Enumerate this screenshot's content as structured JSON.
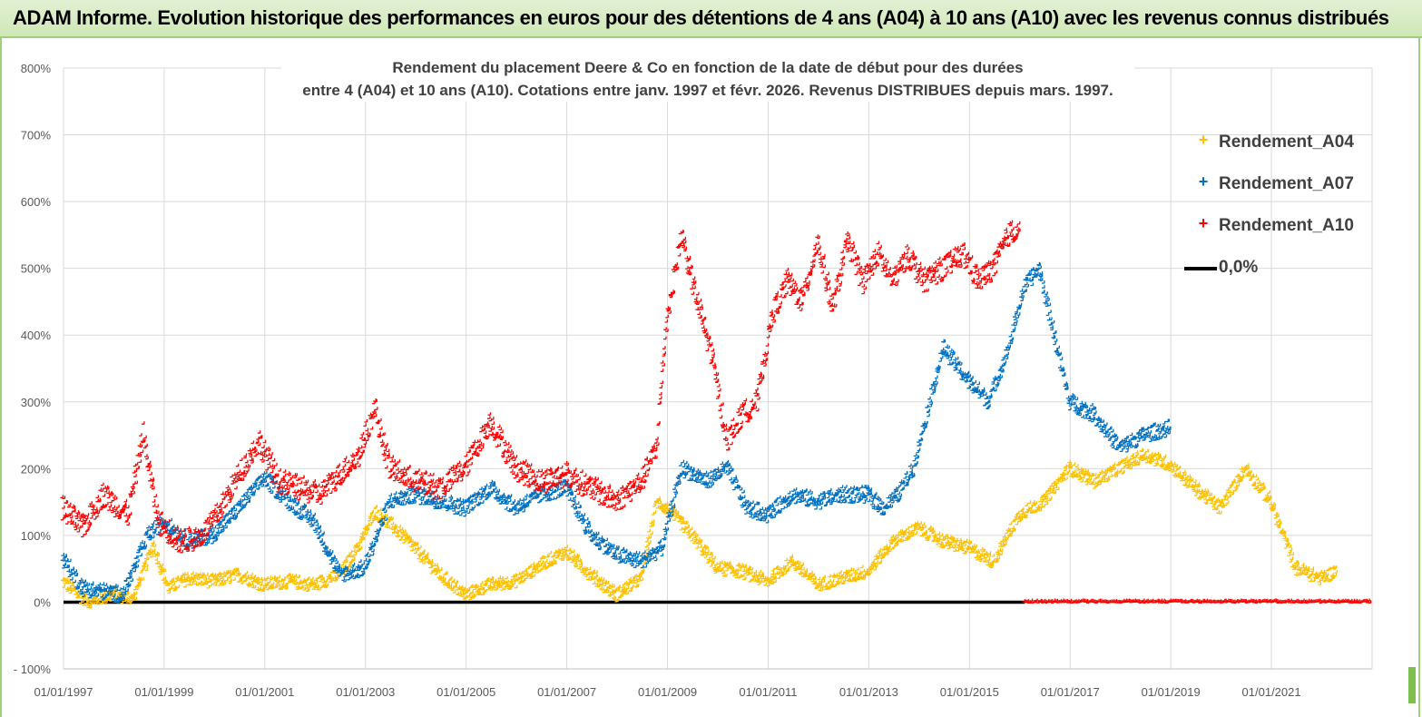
{
  "header": {
    "title": "ADAM Informe. Evolution historique des performances en euros pour des détentions de 4 ans (A04) à 10 ans (A10) avec les revenus connus distribués"
  },
  "chart_data": {
    "type": "scatter",
    "title_line1": "Rendement du placement Deere & Co en fonction de la date de début pour des durées",
    "title_line2": "entre 4 (A04) et 10 ans (A10).  Cotations entre janv. 1997 et févr. 2026. Revenus  DISTRIBUES depuis mars. 1997.",
    "xlabel": "",
    "ylabel": "",
    "x_range": [
      1997.0,
      2023.0
    ],
    "ylim": [
      -100,
      800
    ],
    "y_ticks": [
      -100,
      0,
      100,
      200,
      300,
      400,
      500,
      600,
      700,
      800
    ],
    "y_tick_labels": [
      "- 100%",
      "0%",
      "100%",
      "200%",
      "300%",
      "400%",
      "500%",
      "600%",
      "700%",
      "800%"
    ],
    "x_tick_labels": [
      "01/01/1997",
      "01/01/1999",
      "01/01/2001",
      "01/01/2003",
      "01/01/2005",
      "01/01/2007",
      "01/01/2009",
      "01/01/2011",
      "01/01/2013",
      "01/01/2015",
      "01/01/2017",
      "01/01/2019",
      "01/01/2021"
    ],
    "x_tick_years": [
      1997,
      1999,
      2001,
      2003,
      2005,
      2007,
      2009,
      2011,
      2013,
      2015,
      2017,
      2019,
      2021
    ],
    "legend_position": "right",
    "series": [
      {
        "name": "Rendement_A04",
        "marker": "+",
        "color": "#ffc000",
        "noise": 10,
        "end_year": 2022.3,
        "x": [
          1997.0,
          1997.5,
          1998.0,
          1998.4,
          1998.8,
          1999.1,
          1999.5,
          2000.0,
          2000.5,
          2001.0,
          2001.5,
          2002.0,
          2002.5,
          2002.9,
          2003.2,
          2003.6,
          2004.0,
          2004.5,
          2005.0,
          2005.5,
          2006.0,
          2006.5,
          2007.0,
          2007.5,
          2008.0,
          2008.5,
          2008.8,
          2009.0,
          2009.5,
          2010.0,
          2010.5,
          2011.0,
          2011.5,
          2012.0,
          2012.5,
          2013.0,
          2013.5,
          2014.0,
          2014.5,
          2015.0,
          2015.5,
          2016.0,
          2016.5,
          2017.0,
          2017.5,
          2018.0,
          2018.5,
          2019.0,
          2019.5,
          2020.0,
          2020.5,
          2021.0,
          2021.5,
          2022.0,
          2022.3
        ],
        "values": [
          30,
          0,
          10,
          5,
          85,
          20,
          35,
          30,
          40,
          25,
          30,
          25,
          40,
          85,
          135,
          110,
          80,
          40,
          10,
          25,
          30,
          55,
          75,
          40,
          10,
          35,
          150,
          140,
          100,
          50,
          45,
          30,
          60,
          25,
          35,
          45,
          90,
          110,
          90,
          80,
          60,
          130,
          150,
          200,
          180,
          200,
          220,
          205,
          170,
          140,
          200,
          150,
          50,
          35,
          45
        ]
      },
      {
        "name": "Rendement_A07",
        "marker": "+",
        "color": "#0070c0",
        "noise": 12,
        "end_year": 2019.0,
        "x": [
          1997.0,
          1997.4,
          1997.8,
          1998.2,
          1998.7,
          1999.0,
          1999.5,
          2000.0,
          2000.5,
          2001.0,
          2001.5,
          2002.0,
          2002.5,
          2003.0,
          2003.5,
          2004.0,
          2004.5,
          2005.0,
          2005.5,
          2006.0,
          2006.5,
          2007.0,
          2007.5,
          2008.0,
          2008.5,
          2008.9,
          2009.3,
          2009.8,
          2010.2,
          2010.6,
          2011.0,
          2011.5,
          2012.0,
          2012.5,
          2013.0,
          2013.3,
          2013.6,
          2013.9,
          2014.2,
          2014.5,
          2015.0,
          2015.4,
          2015.8,
          2016.1,
          2016.4,
          2016.7,
          2017.0,
          2017.5,
          2018.0,
          2018.5,
          2019.0
        ],
        "values": [
          65,
          20,
          15,
          10,
          100,
          120,
          90,
          100,
          140,
          185,
          150,
          120,
          40,
          50,
          150,
          160,
          150,
          140,
          170,
          140,
          160,
          170,
          100,
          70,
          60,
          80,
          200,
          180,
          200,
          140,
          130,
          160,
          150,
          160,
          160,
          140,
          160,
          200,
          290,
          380,
          330,
          300,
          380,
          470,
          500,
          400,
          300,
          280,
          230,
          250,
          260
        ]
      },
      {
        "name": "Rendement_A10",
        "marker": "+",
        "color": "#ff0000",
        "noise": 18,
        "end_year": 2016.0,
        "x": [
          1997.0,
          1997.4,
          1997.8,
          1998.3,
          1998.6,
          1998.9,
          1999.3,
          1999.7,
          2000.0,
          2000.5,
          2000.9,
          2001.3,
          2001.7,
          2002.1,
          2002.5,
          2002.9,
          2003.2,
          2003.5,
          2004.0,
          2004.5,
          2005.0,
          2005.5,
          2006.0,
          2006.5,
          2007.0,
          2007.5,
          2008.0,
          2008.5,
          2008.8,
          2009.0,
          2009.3,
          2009.6,
          2009.9,
          2010.2,
          2010.5,
          2010.8,
          2011.1,
          2011.4,
          2011.7,
          2012.0,
          2012.3,
          2012.6,
          2012.9,
          2013.2,
          2013.5,
          2013.8,
          2014.1,
          2014.5,
          2014.9,
          2015.2,
          2015.5,
          2015.8,
          2016.0
        ],
        "values": [
          140,
          110,
          160,
          130,
          250,
          120,
          90,
          95,
          120,
          190,
          240,
          180,
          170,
          160,
          190,
          220,
          290,
          200,
          180,
          170,
          200,
          270,
          200,
          180,
          190,
          170,
          150,
          180,
          230,
          420,
          550,
          450,
          370,
          240,
          280,
          300,
          430,
          480,
          450,
          540,
          440,
          540,
          480,
          520,
          480,
          520,
          480,
          500,
          520,
          480,
          500,
          550,
          560
        ]
      },
      {
        "name": "0,0%",
        "marker": "line",
        "color": "#000000",
        "values": [
          0
        ]
      }
    ],
    "zero_tail": {
      "color": "#ff0000",
      "from_year": 2016.1,
      "to_year": 2023.0
    }
  }
}
